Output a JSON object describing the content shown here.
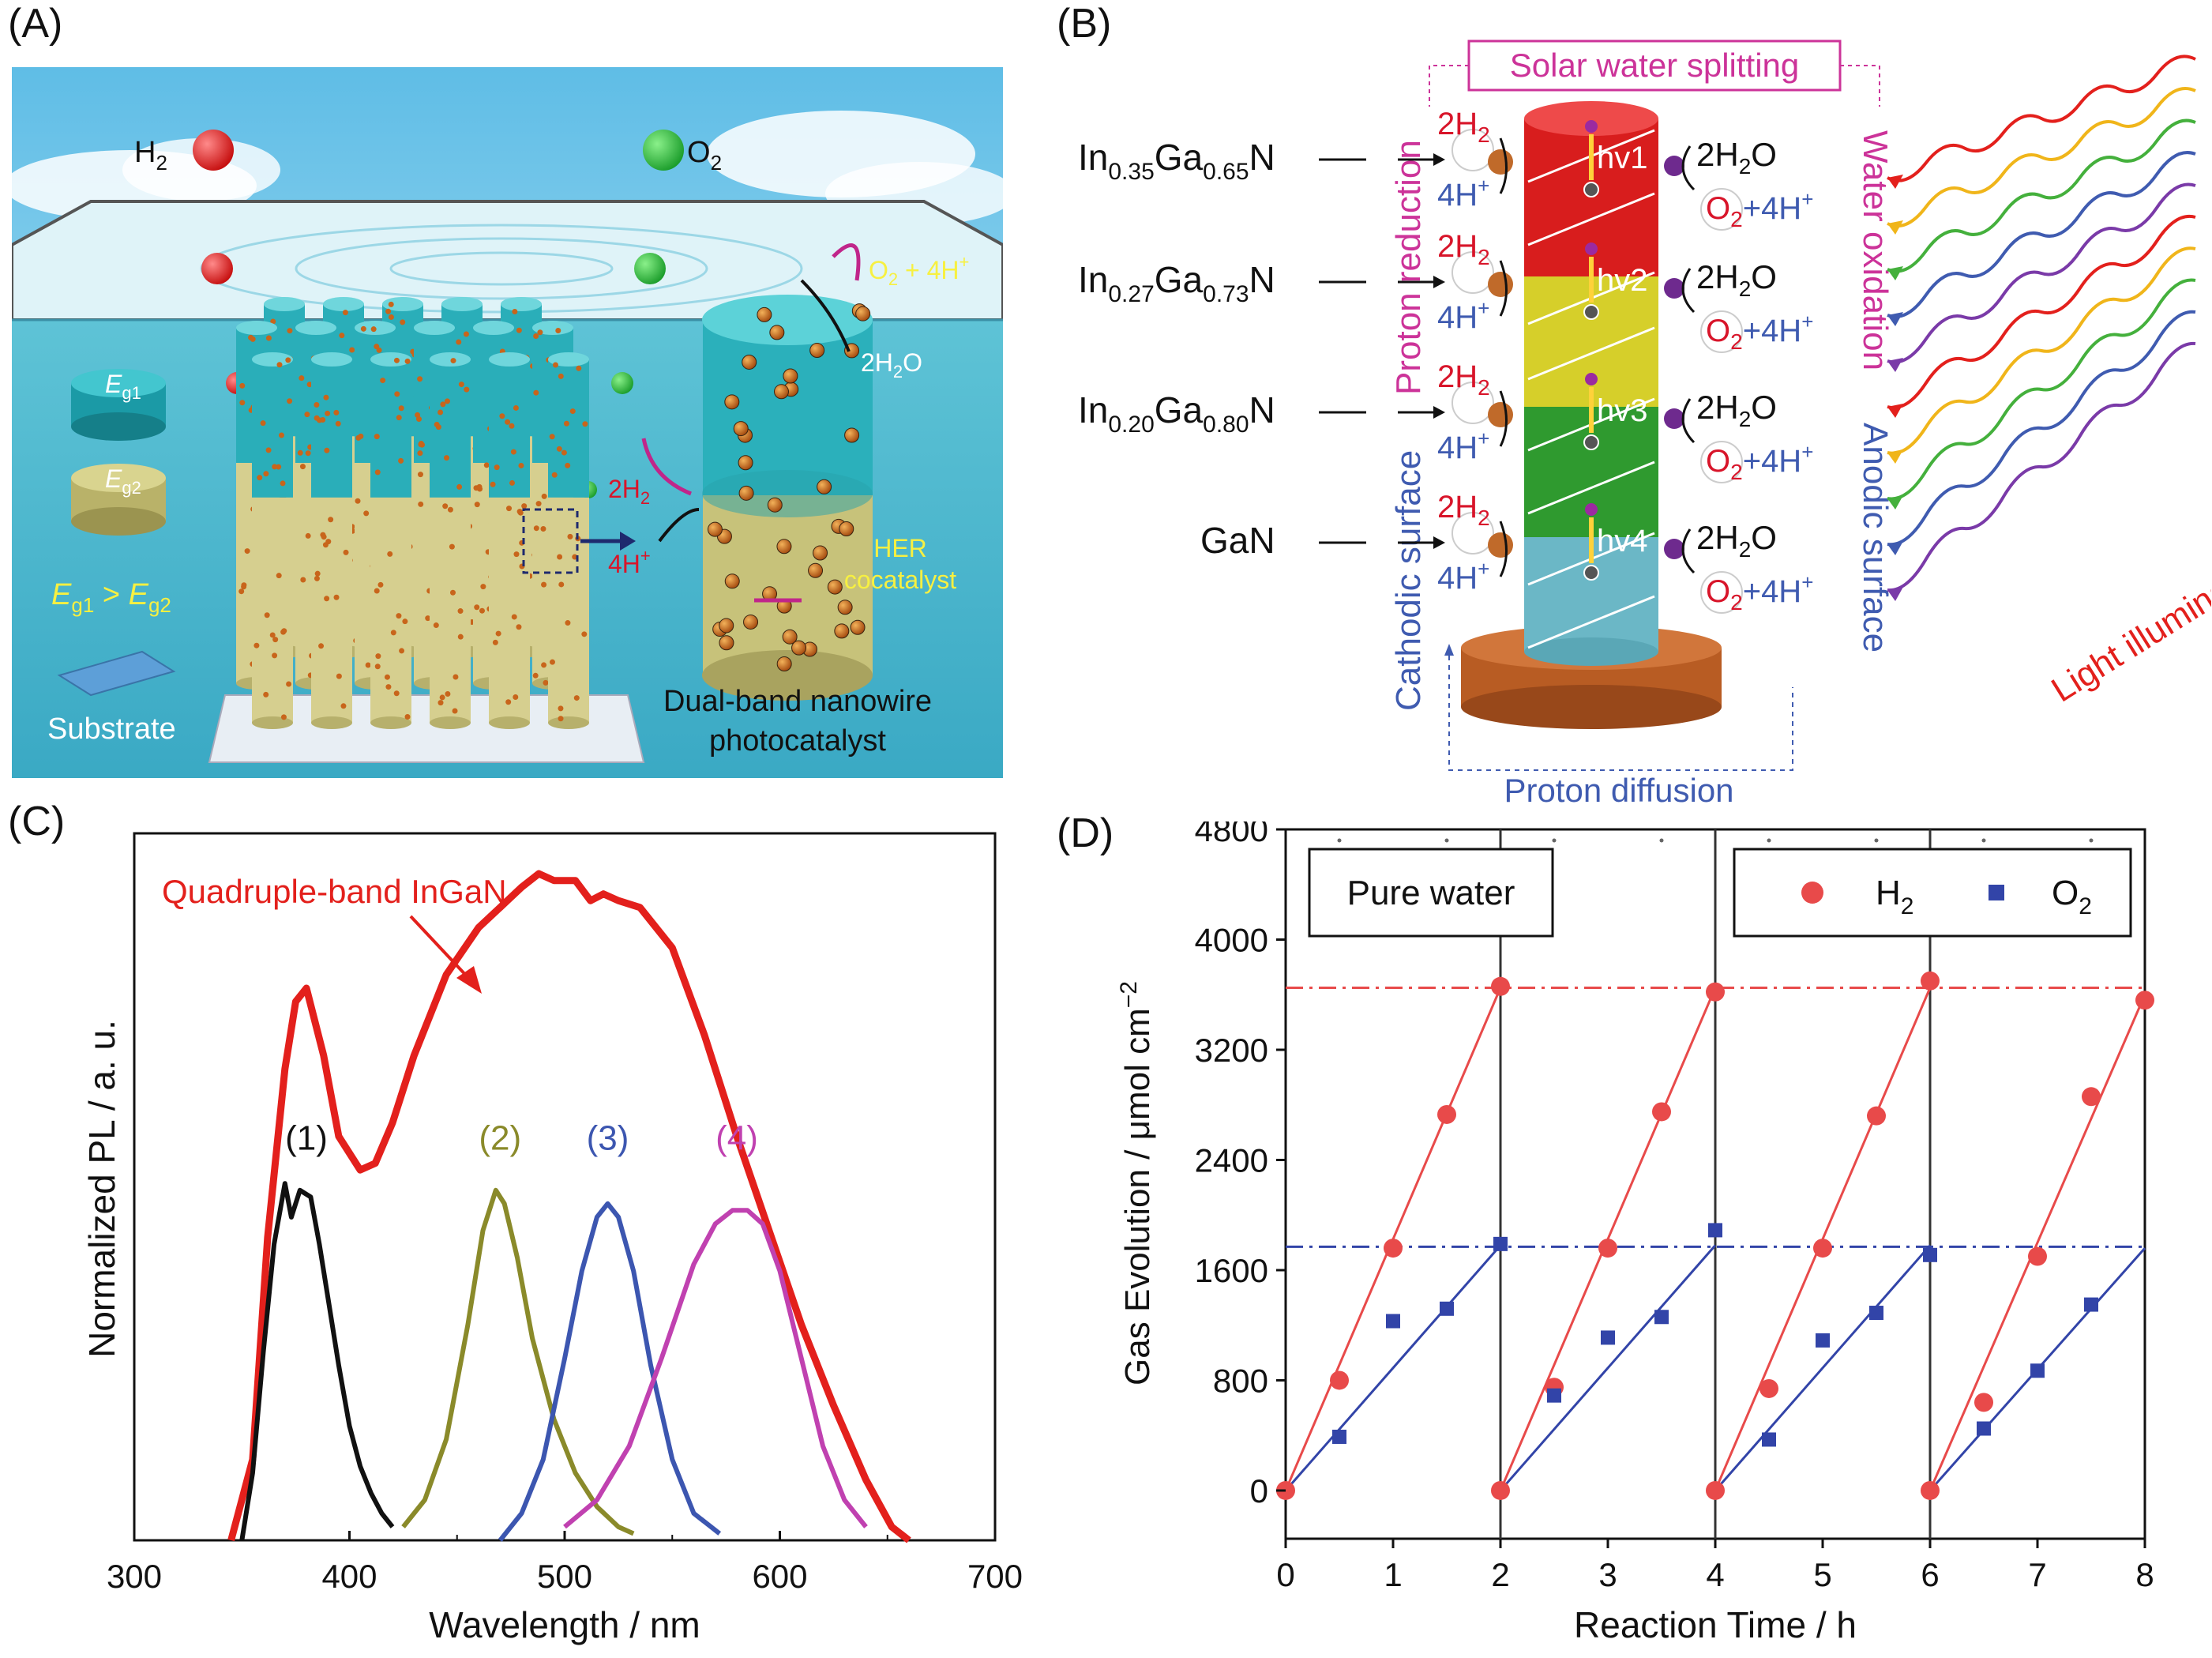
{
  "panel_labels": {
    "a": "(A)",
    "b": "(B)",
    "c": "(C)",
    "d": "(D)"
  },
  "panel_a": {
    "h2": "H",
    "h2_sub": "2",
    "o2": "O",
    "o2_sub": "2",
    "eg1": "E",
    "eg1_sub": "g1",
    "eg2": "E",
    "eg2_sub": "g2",
    "ineq_a": "E",
    "ineq_a_sub": "g1",
    "ineq_gt": " > ",
    "ineq_b": "E",
    "ineq_b_sub": "g2",
    "substrate": "Substrate",
    "o2_4h": "O",
    "o2_4h_sub": "2",
    "o2_4h_rest": " + 4H",
    "o2_4h_sup": "+",
    "two_h2": "2H",
    "two_h2_sub": "2",
    "two_h2o": "2H",
    "two_h2o_sub": "2",
    "two_h2o_rest": "O",
    "four_h": "4H",
    "four_h_sup": "+",
    "her1": "HER",
    "her2": "cocatalyst",
    "caption1": "Dual-band nanowire",
    "caption2": "photocatalyst"
  },
  "panel_b": {
    "title": "Solar water splitting",
    "left_vertical_top": "Proton reduction",
    "left_vertical_bottom": "Cathodic surface",
    "right_vertical_top": "Water oxidation",
    "right_vertical_bottom": "Anodic surface",
    "light": "Light illumination",
    "proton_diffusion": "Proton diffusion",
    "layers": [
      {
        "base1": "In",
        "sub1": "0.35",
        "base2": "Ga",
        "sub2": "0.65",
        "base3": "N",
        "hv": "hv1",
        "color": "#d81d1d"
      },
      {
        "base1": "In",
        "sub1": "0.27",
        "base2": "Ga",
        "sub2": "0.73",
        "base3": "N",
        "hv": "hv2",
        "color": "#d6cf2a"
      },
      {
        "base1": "In",
        "sub1": "0.20",
        "base2": "Ga",
        "sub2": "0.80",
        "base3": "N",
        "hv": "hv3",
        "color": "#2f9a2f"
      },
      {
        "base1": "GaN",
        "sub1": "",
        "base2": "",
        "sub2": "",
        "base3": "",
        "hv": "hv4",
        "color": "#6bb7c6"
      }
    ],
    "two_h2": "2H",
    "two_h2_sub": "2",
    "four_h": "4H",
    "four_h_sup": "+",
    "h2o": "2H",
    "h2o_sub": "2",
    "h2o_rest": "O",
    "o2": "O",
    "o2_sub": "2",
    "o2_rest": "+4H",
    "o2_sup": "+"
  },
  "panel_c": {
    "chart_data": {
      "type": "line",
      "title": "",
      "xlabel": "Wavelength / nm",
      "ylabel": "Normalized PL / a. u.",
      "xlim": [
        300,
        700
      ],
      "ylim": [
        0,
        1.05
      ],
      "xticks": [
        "300",
        "400",
        "500",
        "600",
        "700"
      ],
      "annotation": "Quadruple-band InGaN",
      "series": [
        {
          "name": "Quadruple-band InGaN",
          "color": "#e3201c",
          "x": [
            345,
            355,
            362,
            370,
            375,
            380,
            388,
            395,
            405,
            412,
            420,
            430,
            445,
            460,
            470,
            480,
            488,
            495,
            505,
            512,
            518,
            525,
            535,
            550,
            565,
            580,
            595,
            610,
            625,
            640,
            652,
            660
          ],
          "y": [
            0.0,
            0.12,
            0.45,
            0.7,
            0.8,
            0.82,
            0.72,
            0.6,
            0.55,
            0.56,
            0.62,
            0.72,
            0.84,
            0.91,
            0.94,
            0.97,
            0.99,
            0.98,
            0.98,
            0.95,
            0.96,
            0.95,
            0.94,
            0.88,
            0.75,
            0.6,
            0.46,
            0.32,
            0.2,
            0.09,
            0.02,
            0.0
          ]
        },
        {
          "name": "(1)",
          "color": "#111111",
          "x": [
            350,
            355,
            360,
            365,
            370,
            373,
            377,
            382,
            386,
            390,
            395,
            400,
            405,
            410,
            415,
            420
          ],
          "y": [
            0.0,
            0.1,
            0.28,
            0.44,
            0.53,
            0.48,
            0.52,
            0.51,
            0.44,
            0.36,
            0.26,
            0.17,
            0.11,
            0.07,
            0.04,
            0.02
          ]
        },
        {
          "name": "(2)",
          "color": "#8a8a2a",
          "x": [
            425,
            435,
            445,
            455,
            462,
            468,
            472,
            478,
            485,
            495,
            505,
            515,
            525,
            532
          ],
          "y": [
            0.02,
            0.06,
            0.15,
            0.32,
            0.46,
            0.52,
            0.5,
            0.42,
            0.3,
            0.18,
            0.1,
            0.05,
            0.02,
            0.01
          ]
        },
        {
          "name": "(3)",
          "color": "#3c56b0",
          "x": [
            470,
            480,
            490,
            500,
            508,
            515,
            520,
            525,
            532,
            540,
            550,
            560,
            572
          ],
          "y": [
            0.0,
            0.04,
            0.12,
            0.27,
            0.4,
            0.48,
            0.5,
            0.48,
            0.4,
            0.26,
            0.12,
            0.04,
            0.01
          ]
        },
        {
          "name": "(4)",
          "color": "#c041b0",
          "x": [
            500,
            515,
            530,
            545,
            560,
            570,
            578,
            585,
            592,
            600,
            610,
            620,
            630,
            640
          ],
          "y": [
            0.02,
            0.06,
            0.14,
            0.27,
            0.41,
            0.47,
            0.49,
            0.49,
            0.47,
            0.4,
            0.27,
            0.14,
            0.06,
            0.02
          ]
        }
      ],
      "curve_labels": [
        {
          "text": "(1)",
          "x": 380,
          "y": 0.58,
          "color": "#111111"
        },
        {
          "text": "(2)",
          "x": 470,
          "y": 0.58,
          "color": "#8a8a2a"
        },
        {
          "text": "(3)",
          "x": 520,
          "y": 0.58,
          "color": "#3c56b0"
        },
        {
          "text": "(4)",
          "x": 580,
          "y": 0.58,
          "color": "#c041b0"
        }
      ]
    }
  },
  "panel_d": {
    "chart_data": {
      "type": "scatter",
      "xlabel": "Reaction Time / h",
      "ylabel_main": "Gas Evolution / μmol cm",
      "ylabel_sup": "−2",
      "xlim": [
        0,
        8
      ],
      "ylim": [
        -350,
        4800
      ],
      "xticks": [
        "0",
        "1",
        "2",
        "3",
        "4",
        "5",
        "6",
        "7",
        "8"
      ],
      "yticks": [
        "0",
        "800",
        "1600",
        "2400",
        "3200",
        "4000",
        "4800"
      ],
      "condition_label": "Pure water",
      "legend": [
        {
          "name": "H",
          "sub": "2",
          "color": "#e84a4a"
        },
        {
          "name": "O",
          "sub": "2",
          "color": "#3244a8"
        }
      ],
      "h2_ref_line": 3650,
      "o2_ref_line": 1770,
      "cycle_dividers": [
        2,
        4,
        6
      ],
      "series": [
        {
          "name": "H2",
          "color": "#e84a4a",
          "marker": "circle",
          "x": [
            0,
            0.5,
            1,
            1.5,
            2,
            2,
            2.5,
            3,
            3.5,
            4,
            4,
            4.5,
            5,
            5.5,
            6,
            6,
            6.5,
            7,
            7.5,
            8
          ],
          "y": [
            0,
            800,
            1760,
            2730,
            3660,
            0,
            750,
            1760,
            2750,
            3620,
            0,
            740,
            1760,
            2720,
            3700,
            0,
            640,
            1700,
            2860,
            3560
          ]
        },
        {
          "name": "O2",
          "color": "#3244a8",
          "marker": "square",
          "x": [
            0.5,
            1,
            1.5,
            2,
            2.5,
            3,
            3.5,
            4,
            4.5,
            5,
            5.5,
            6,
            6.5,
            7,
            7.5
          ],
          "y": [
            390,
            1230,
            1320,
            1790,
            690,
            1110,
            1260,
            1890,
            370,
            1090,
            1290,
            1710,
            450,
            870,
            1350
          ]
        }
      ],
      "fit_lines": [
        {
          "color": "#e84a4a",
          "segments": [
            [
              0,
              0,
              2,
              3650
            ],
            [
              2,
              0,
              4,
              3650
            ],
            [
              4,
              0,
              6,
              3650
            ],
            [
              6,
              0,
              8,
              3600
            ]
          ]
        },
        {
          "color": "#3244a8",
          "segments": [
            [
              0,
              0,
              2,
              1780
            ],
            [
              2,
              0,
              4,
              1780
            ],
            [
              4,
              0,
              6,
              1780
            ],
            [
              6,
              0,
              8,
              1760
            ]
          ]
        }
      ]
    }
  }
}
